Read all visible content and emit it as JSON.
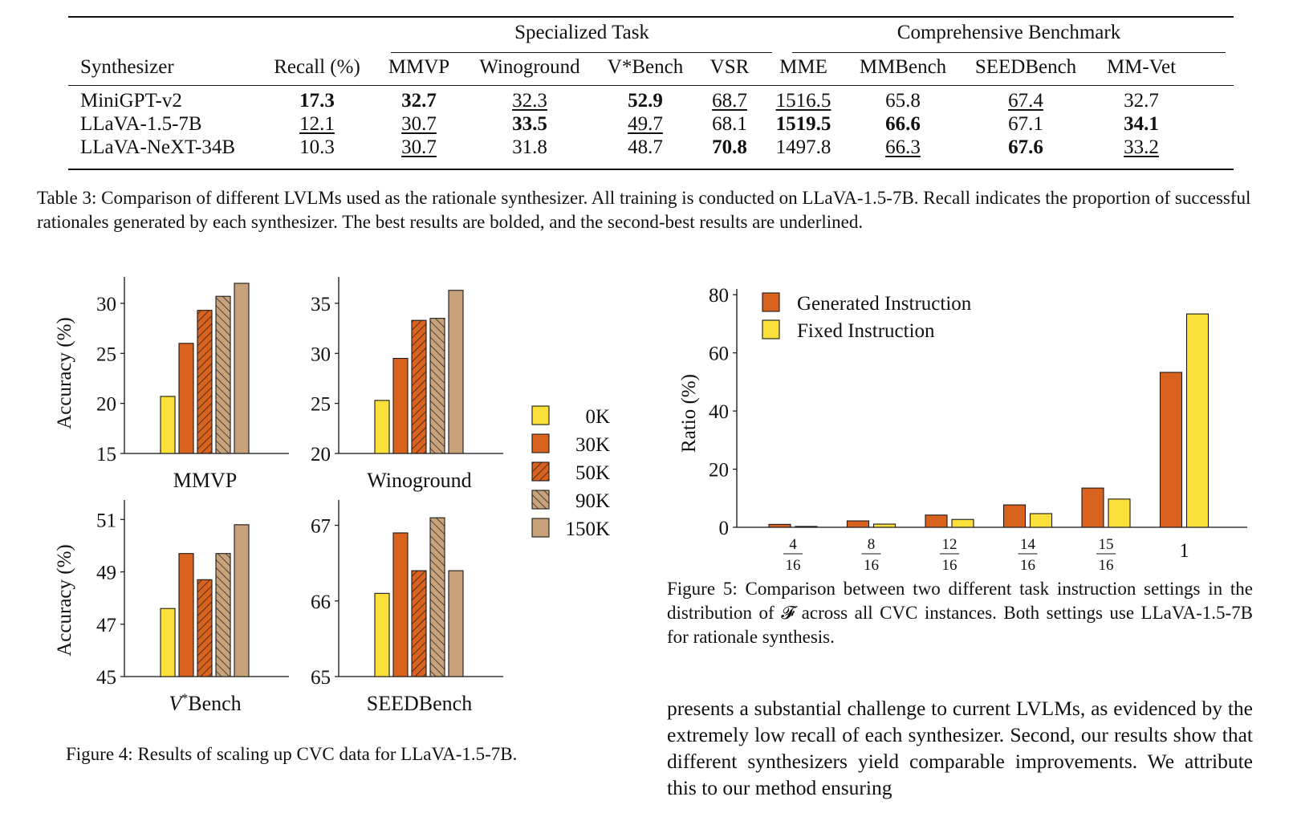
{
  "table3": {
    "groups": [
      "Specialized Task",
      "Comprehensive Benchmark"
    ],
    "columns": [
      "Synthesizer",
      "Recall (%)",
      "MMVP",
      "Winoground",
      "V*Bench",
      "VSR",
      "MME",
      "MMBench",
      "SEEDBench",
      "MM-Vet"
    ],
    "rows": [
      {
        "name": "MiniGPT-v2",
        "cells": [
          "17.3",
          "32.7",
          "32.3",
          "52.9",
          "68.7",
          "1516.5",
          "65.8",
          "67.4",
          "32.7"
        ],
        "style": [
          "b",
          "b",
          "u",
          "b",
          "u",
          "u",
          "",
          "u",
          ""
        ]
      },
      {
        "name": "LLaVA-1.5-7B",
        "cells": [
          "12.1",
          "30.7",
          "33.5",
          "49.7",
          "68.1",
          "1519.5",
          "66.6",
          "67.1",
          "34.1"
        ],
        "style": [
          "u",
          "u",
          "b",
          "u",
          "",
          "b",
          "b",
          "",
          "b"
        ]
      },
      {
        "name": "LLaVA-NeXT-34B",
        "cells": [
          "10.3",
          "30.7",
          "31.8",
          "48.7",
          "70.8",
          "1497.8",
          "66.3",
          "67.6",
          "33.2"
        ],
        "style": [
          "",
          "u",
          "",
          "",
          "b",
          "",
          "u",
          "b",
          "u"
        ]
      }
    ],
    "caption": "Table 3: Comparison of different LVLMs used as the rationale synthesizer. All training is conducted on LLaVA-1.5-7B. Recall indicates the proportion of successful rationales generated by each synthesizer. The best results are bolded, and the second-best results are underlined."
  },
  "figure4": {
    "caption": "Figure 4: Results of scaling up CVC data for LLaVA-1.5-7B.",
    "ylabel": "Accuracy (%)",
    "legend": [
      "0K",
      "30K",
      "50K",
      "90K",
      "150K"
    ]
  },
  "figure5": {
    "caption": "Figure 5: Comparison between two different task instruction settings in the distribution of 𝓕 across all CVC instances. Both settings use LLaVA-1.5-7B for rationale synthesis.",
    "ylabel": "Ratio (%)"
  },
  "body_text": "presents a substantial challenge to current LVLMs, as evidenced by the extremely low recall of each synthesizer. Second, our results show that different synthesizers yield comparable improvements. We attribute this to our method ensuring",
  "colors": {
    "yellow": "#fbe03a",
    "orange": "#d8621e",
    "tan": "#c8a27a",
    "edge": "#1a1a1a"
  },
  "chart_data": [
    {
      "type": "bar",
      "title": "MMVP",
      "ylabel": "Accuracy (%)",
      "categories": [
        "0K",
        "30K",
        "50K",
        "90K",
        "150K"
      ],
      "values": [
        20.7,
        26.0,
        29.3,
        30.7,
        32.0
      ],
      "ylim": [
        15,
        32
      ],
      "yticks": [
        15,
        20,
        25,
        30
      ]
    },
    {
      "type": "bar",
      "title": "Winoground",
      "categories": [
        "0K",
        "30K",
        "50K",
        "90K",
        "150K"
      ],
      "values": [
        25.3,
        29.5,
        33.3,
        33.5,
        36.3
      ],
      "ylim": [
        20,
        37
      ],
      "yticks": [
        20,
        25,
        30,
        35
      ]
    },
    {
      "type": "bar",
      "title": "V*Bench",
      "ylabel": "Accuracy (%)",
      "categories": [
        "0K",
        "30K",
        "50K",
        "90K",
        "150K"
      ],
      "values": [
        47.6,
        49.7,
        48.7,
        49.7,
        50.8
      ],
      "ylim": [
        45,
        51.5
      ],
      "yticks": [
        45,
        47,
        49,
        51
      ]
    },
    {
      "type": "bar",
      "title": "SEEDBench",
      "categories": [
        "0K",
        "30K",
        "50K",
        "90K",
        "150K"
      ],
      "values": [
        66.1,
        66.9,
        66.4,
        67.1,
        66.4
      ],
      "ylim": [
        65,
        67.25
      ],
      "yticks": [
        65,
        66,
        67
      ]
    },
    {
      "type": "bar",
      "ylabel": "Ratio (%)",
      "categories": [
        "4/16",
        "8/16",
        "12/16",
        "14/16",
        "15/16",
        "1"
      ],
      "series": [
        {
          "name": "Generated Instruction",
          "values": [
            1.0,
            2.2,
            4.2,
            7.7,
            13.5,
            53.3
          ]
        },
        {
          "name": "Fixed Instruction",
          "values": [
            0.3,
            1.1,
            2.7,
            4.7,
            9.7,
            73.4
          ]
        }
      ],
      "ylim": [
        0,
        82
      ],
      "yticks": [
        0,
        20,
        40,
        60,
        80
      ],
      "legend_position": "top-left"
    }
  ]
}
